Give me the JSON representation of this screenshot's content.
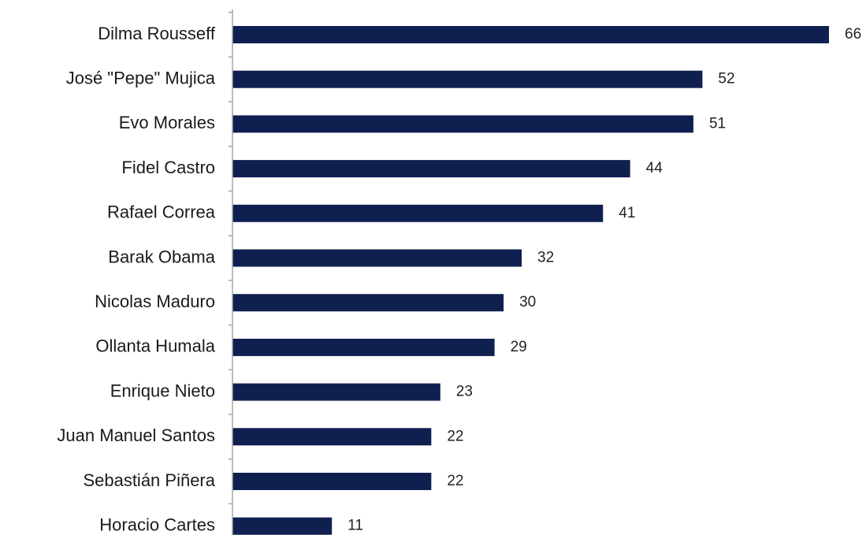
{
  "chart_data": {
    "type": "bar",
    "orientation": "horizontal",
    "categories": [
      "Dilma Rousseff",
      "José \"Pepe\" Mujica",
      "Evo Morales",
      "Fidel Castro",
      "Rafael Correa",
      "Barak Obama",
      "Nicolas Maduro",
      "Ollanta Humala",
      "Enrique Nieto",
      "Juan Manuel Santos",
      "Sebastián Piñera",
      "Horacio Cartes"
    ],
    "values": [
      66,
      52,
      51,
      44,
      41,
      32,
      30,
      29,
      23,
      22,
      22,
      11
    ],
    "xlim": [
      0,
      66
    ],
    "grid": false,
    "legend": "none",
    "data_labels": true,
    "bar_color": "#0f1f4f",
    "axis_color": "#a6a6a6"
  }
}
